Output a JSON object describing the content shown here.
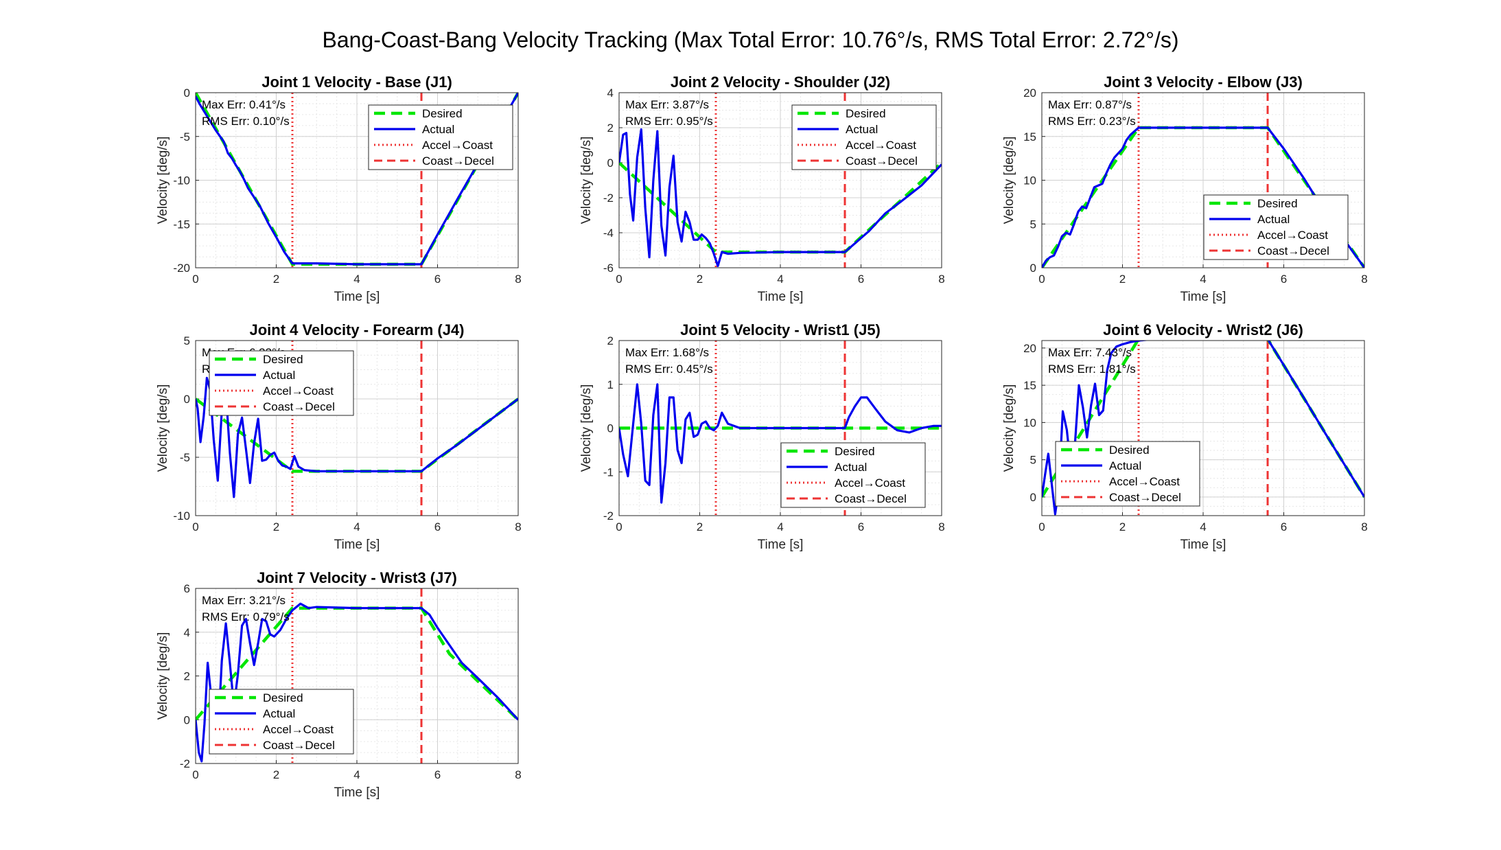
{
  "figure": {
    "suptitle": "Bang-Coast-Bang Velocity Tracking (Max Total Error: 10.76°/s, RMS Total Error: 2.72°/s)"
  },
  "legend_labels": [
    "Desired",
    "Actual",
    "Accel→Coast",
    "Coast→Decel"
  ],
  "colors": {
    "desired": "#00e600",
    "actual": "#0000ee",
    "accel_coast": "#ee3333",
    "coast_decel": "#ee3333"
  },
  "chart_data": [
    {
      "type": "line",
      "title": "Joint 1 Velocity - Base (J1)",
      "xlabel": "Time [s]",
      "ylabel": "Velocity [deg/s]",
      "xlim": [
        0,
        8
      ],
      "ylim": [
        -20,
        0
      ],
      "xticks": [
        0,
        2,
        4,
        6,
        8
      ],
      "yticks": [
        -20,
        -15,
        -10,
        -5,
        0
      ],
      "grid": true,
      "minor_grid": true,
      "legend_position": "top-right",
      "annotations": [
        "Max Err: 0.41°/s",
        "RMS Err: 0.10°/s"
      ],
      "markers": {
        "accel_to_coast": 2.4,
        "coast_to_decel": 5.6
      },
      "series": [
        {
          "name": "Desired",
          "style": "dashed",
          "x": [
            0,
            2.4,
            5.6,
            8
          ],
          "y": [
            0,
            -19.6,
            -19.6,
            0
          ]
        },
        {
          "name": "Actual",
          "style": "solid",
          "x": [
            0,
            0.1,
            0.3,
            0.5,
            0.7,
            0.8,
            0.9,
            1.0,
            1.1,
            1.2,
            1.3,
            1.4,
            1.6,
            1.8,
            2.0,
            2.2,
            2.4,
            2.5,
            3.0,
            4.0,
            5.0,
            5.6,
            6.0,
            6.5,
            7.0,
            7.5,
            8.0
          ],
          "y": [
            -0.4,
            -1.3,
            -2.8,
            -4.3,
            -5.6,
            -6.9,
            -7.5,
            -8.3,
            -9.0,
            -9.9,
            -10.9,
            -11.6,
            -13.0,
            -14.9,
            -16.5,
            -18.2,
            -19.5,
            -19.5,
            -19.5,
            -19.6,
            -19.6,
            -19.6,
            -16.2,
            -12.1,
            -8.1,
            -4.1,
            0
          ]
        }
      ]
    },
    {
      "type": "line",
      "title": "Joint 2 Velocity - Shoulder (J2)",
      "xlabel": "Time [s]",
      "ylabel": "Velocity [deg/s]",
      "xlim": [
        0,
        8
      ],
      "ylim": [
        -6,
        4
      ],
      "xticks": [
        0,
        2,
        4,
        6,
        8
      ],
      "yticks": [
        -6,
        -4,
        -2,
        0,
        2,
        4
      ],
      "grid": true,
      "minor_grid": true,
      "legend_position": "top-right",
      "annotations": [
        "Max Err: 3.87°/s",
        "RMS Err: 0.95°/s"
      ],
      "markers": {
        "accel_to_coast": 2.4,
        "coast_to_decel": 5.6
      },
      "series": [
        {
          "name": "Desired",
          "style": "dashed",
          "x": [
            0,
            2.4,
            5.6,
            8
          ],
          "y": [
            0,
            -5.1,
            -5.1,
            0
          ]
        },
        {
          "name": "Actual",
          "style": "solid",
          "x": [
            0,
            0.1,
            0.18,
            0.27,
            0.35,
            0.45,
            0.55,
            0.65,
            0.75,
            0.85,
            0.95,
            1.05,
            1.15,
            1.25,
            1.35,
            1.45,
            1.55,
            1.65,
            1.75,
            1.85,
            1.95,
            2.05,
            2.15,
            2.25,
            2.35,
            2.45,
            2.55,
            2.7,
            3.0,
            4.0,
            5.0,
            5.6,
            5.8,
            6.2,
            6.6,
            7.0,
            7.5,
            8.0
          ],
          "y": [
            0,
            1.6,
            1.7,
            -1.8,
            -3.3,
            0.3,
            1.9,
            -2.6,
            -5.4,
            -1.0,
            1.8,
            -3.6,
            -5.3,
            -1.4,
            0.4,
            -3.4,
            -4.5,
            -2.8,
            -3.4,
            -4.4,
            -4.4,
            -4.1,
            -4.3,
            -4.6,
            -5.2,
            -5.9,
            -5.1,
            -5.2,
            -5.15,
            -5.1,
            -5.1,
            -5.1,
            -4.7,
            -3.9,
            -2.9,
            -2.2,
            -1.3,
            -0.1
          ]
        }
      ]
    },
    {
      "type": "line",
      "title": "Joint 3 Velocity - Elbow (J3)",
      "xlabel": "Time [s]",
      "ylabel": "Velocity [deg/s]",
      "xlim": [
        0,
        8
      ],
      "ylim": [
        0,
        20
      ],
      "xticks": [
        0,
        2,
        4,
        6,
        8
      ],
      "yticks": [
        0,
        5,
        10,
        15,
        20
      ],
      "grid": true,
      "minor_grid": true,
      "legend_position": "bottom-right",
      "annotations": [
        "Max Err: 0.87°/s",
        "RMS Err: 0.23°/s"
      ],
      "markers": {
        "accel_to_coast": 2.4,
        "coast_to_decel": 5.6
      },
      "series": [
        {
          "name": "Desired",
          "style": "dashed",
          "x": [
            0,
            2.4,
            5.6,
            8
          ],
          "y": [
            0,
            16,
            16,
            0
          ]
        },
        {
          "name": "Actual",
          "style": "solid",
          "x": [
            0,
            0.1,
            0.2,
            0.3,
            0.4,
            0.5,
            0.6,
            0.7,
            0.8,
            0.9,
            1.0,
            1.1,
            1.2,
            1.3,
            1.4,
            1.5,
            1.6,
            1.7,
            1.8,
            1.9,
            2.0,
            2.1,
            2.2,
            2.3,
            2.4,
            3.0,
            4.0,
            5.0,
            5.6,
            6.0,
            6.5,
            7.0,
            7.5,
            8.0
          ],
          "y": [
            0,
            0.8,
            1.2,
            1.4,
            2.4,
            3.6,
            4.0,
            3.8,
            5.0,
            6.4,
            7.0,
            6.8,
            8.0,
            9.2,
            9.4,
            9.6,
            10.8,
            11.8,
            12.6,
            13.1,
            13.6,
            14.6,
            15.2,
            15.6,
            16.0,
            16.0,
            16.0,
            16.0,
            16.0,
            13.6,
            10.2,
            6.5,
            3.2,
            0
          ]
        }
      ]
    },
    {
      "type": "line",
      "title": "Joint 4 Velocity - Forearm (J4)",
      "xlabel": "Time [s]",
      "ylabel": "Velocity [deg/s]",
      "xlim": [
        0,
        8
      ],
      "ylim": [
        -10,
        5
      ],
      "xticks": [
        0,
        2,
        4,
        6,
        8
      ],
      "yticks": [
        -10,
        -5,
        0,
        5
      ],
      "grid": true,
      "minor_grid": true,
      "legend_position": "top-left",
      "annotations": [
        "Max Err: 6.33°/s",
        "RMS Err: 1.60°/s"
      ],
      "markers": {
        "accel_to_coast": 2.4,
        "coast_to_decel": 5.6
      },
      "series": [
        {
          "name": "Desired",
          "style": "dashed",
          "x": [
            0,
            2.4,
            5.6,
            8
          ],
          "y": [
            0,
            -6.2,
            -6.2,
            0
          ]
        },
        {
          "name": "Actual",
          "style": "solid",
          "x": [
            0,
            0.05,
            0.12,
            0.2,
            0.28,
            0.36,
            0.45,
            0.55,
            0.65,
            0.75,
            0.85,
            0.95,
            1.05,
            1.15,
            1.25,
            1.35,
            1.45,
            1.55,
            1.65,
            1.75,
            1.85,
            1.95,
            2.05,
            2.15,
            2.25,
            2.35,
            2.45,
            2.55,
            2.7,
            3.0,
            4.0,
            5.0,
            5.6,
            6.0,
            6.5,
            7.0,
            7.5,
            8.0
          ],
          "y": [
            0,
            -0.8,
            -3.7,
            -1.5,
            1.8,
            0.8,
            -3.5,
            -7.0,
            -1.0,
            0.6,
            -4.6,
            -8.4,
            -3.0,
            -1.6,
            -4.3,
            -7.2,
            -3.8,
            -1.7,
            -5.3,
            -5.2,
            -4.8,
            -4.6,
            -5.3,
            -5.7,
            -5.8,
            -6.0,
            -4.9,
            -5.8,
            -6.1,
            -6.2,
            -6.2,
            -6.2,
            -6.2,
            -5.1,
            -3.9,
            -2.6,
            -1.3,
            0
          ]
        }
      ]
    },
    {
      "type": "line",
      "title": "Joint 5 Velocity - Wrist1 (J5)",
      "xlabel": "Time [s]",
      "ylabel": "Velocity [deg/s]",
      "xlim": [
        0,
        8
      ],
      "ylim": [
        -2,
        2
      ],
      "xticks": [
        0,
        2,
        4,
        6,
        8
      ],
      "yticks": [
        -2,
        -1,
        0,
        1,
        2
      ],
      "grid": true,
      "minor_grid": true,
      "legend_position": "bottom-right",
      "annotations": [
        "Max Err: 1.68°/s",
        "RMS Err: 0.45°/s"
      ],
      "markers": {
        "accel_to_coast": 2.4,
        "coast_to_decel": 5.6
      },
      "series": [
        {
          "name": "Desired",
          "style": "dashed",
          "x": [
            0,
            8
          ],
          "y": [
            0,
            0
          ]
        },
        {
          "name": "Actual",
          "style": "solid",
          "x": [
            0,
            0.1,
            0.22,
            0.35,
            0.45,
            0.55,
            0.65,
            0.75,
            0.85,
            0.95,
            1.05,
            1.15,
            1.25,
            1.35,
            1.45,
            1.55,
            1.65,
            1.75,
            1.85,
            1.95,
            2.05,
            2.15,
            2.25,
            2.35,
            2.45,
            2.55,
            2.7,
            3.0,
            4.0,
            5.0,
            5.6,
            5.7,
            5.85,
            6.0,
            6.15,
            6.35,
            6.6,
            6.9,
            7.2,
            7.5,
            7.8,
            8.0
          ],
          "y": [
            0,
            -0.6,
            -1.1,
            0.1,
            1.0,
            0.1,
            -1.2,
            -1.3,
            0.3,
            1.0,
            -1.7,
            -0.8,
            0.7,
            0.7,
            -0.5,
            -0.8,
            0.2,
            0.35,
            -0.2,
            -0.15,
            0.1,
            0.15,
            0.0,
            -0.05,
            0.05,
            0.35,
            0.1,
            0.0,
            0.0,
            0.0,
            0.0,
            0.25,
            0.5,
            0.7,
            0.7,
            0.45,
            0.15,
            -0.05,
            -0.1,
            0.0,
            0.05,
            0.05
          ]
        }
      ]
    },
    {
      "type": "line",
      "title": "Joint 6 Velocity - Wrist2 (J6)",
      "xlabel": "Time [s]",
      "ylabel": "Velocity [deg/s]",
      "xlim": [
        0,
        8
      ],
      "ylim": [
        -2.5,
        21
      ],
      "xticks": [
        0,
        2,
        4,
        6,
        8
      ],
      "yticks": [
        0,
        5,
        10,
        15,
        20
      ],
      "grid": true,
      "minor_grid": true,
      "legend_position": "bottom-left",
      "annotations": [
        "Max Err: 7.43°/s",
        "RMS Err: 1.81°/s"
      ],
      "markers": {
        "accel_to_coast": 2.4,
        "coast_to_decel": 5.6
      },
      "series": [
        {
          "name": "Desired",
          "style": "dashed",
          "x": [
            0,
            2.4,
            5.6,
            8
          ],
          "y": [
            0,
            21.2,
            21.2,
            0
          ]
        },
        {
          "name": "Actual",
          "style": "solid",
          "x": [
            0,
            0.08,
            0.16,
            0.24,
            0.33,
            0.42,
            0.52,
            0.62,
            0.72,
            0.82,
            0.92,
            1.02,
            1.12,
            1.22,
            1.32,
            1.42,
            1.52,
            1.62,
            1.72,
            1.85,
            2.0,
            2.2,
            2.4,
            2.6,
            2.8,
            3.0,
            4.0,
            5.0,
            5.6,
            6.0,
            6.5,
            7.0,
            7.5,
            8.0
          ],
          "y": [
            0,
            3.0,
            5.8,
            2.0,
            -2.3,
            1.2,
            11.5,
            9.0,
            3.8,
            7.0,
            15.0,
            12.0,
            8.0,
            12.3,
            15.2,
            11.0,
            11.6,
            17.0,
            19.3,
            20.2,
            20.5,
            20.8,
            21.0,
            21.1,
            21.2,
            21.2,
            21.2,
            21.2,
            21.2,
            17.7,
            13.3,
            8.8,
            4.4,
            0
          ]
        }
      ]
    },
    {
      "type": "line",
      "title": "Joint 7 Velocity - Wrist3 (J7)",
      "xlabel": "Time [s]",
      "ylabel": "Velocity [deg/s]",
      "xlim": [
        0,
        8
      ],
      "ylim": [
        -2,
        6
      ],
      "xticks": [
        0,
        2,
        4,
        6,
        8
      ],
      "yticks": [
        -2,
        0,
        2,
        4,
        6
      ],
      "grid": true,
      "minor_grid": true,
      "legend_position": "bottom-left",
      "annotations": [
        "Max Err: 3.21°/s",
        "RMS Err: 0.79°/s"
      ],
      "markers": {
        "accel_to_coast": 2.4,
        "coast_to_decel": 5.6
      },
      "series": [
        {
          "name": "Desired",
          "style": "dashed",
          "x": [
            0,
            2.4,
            5.6,
            6.3,
            8
          ],
          "y": [
            0,
            5.1,
            5.1,
            3.0,
            0
          ]
        },
        {
          "name": "Actual",
          "style": "solid",
          "x": [
            0,
            0.08,
            0.15,
            0.22,
            0.3,
            0.38,
            0.47,
            0.56,
            0.65,
            0.75,
            0.85,
            0.95,
            1.05,
            1.15,
            1.25,
            1.35,
            1.45,
            1.55,
            1.65,
            1.75,
            1.85,
            1.95,
            2.1,
            2.25,
            2.4,
            2.6,
            2.8,
            3.0,
            4.0,
            5.0,
            5.6,
            5.8,
            6.0,
            6.3,
            6.6,
            7.0,
            7.5,
            8.0
          ],
          "y": [
            0,
            -1.5,
            -1.9,
            -0.2,
            2.6,
            1.2,
            -1.5,
            -0.5,
            2.7,
            4.4,
            2.6,
            0.6,
            2.1,
            4.3,
            4.6,
            3.5,
            2.5,
            3.5,
            4.6,
            4.5,
            3.9,
            3.8,
            4.1,
            4.6,
            5.0,
            5.3,
            5.1,
            5.15,
            5.1,
            5.1,
            5.1,
            4.8,
            4.2,
            3.4,
            2.6,
            1.9,
            1.0,
            0
          ]
        }
      ]
    }
  ]
}
